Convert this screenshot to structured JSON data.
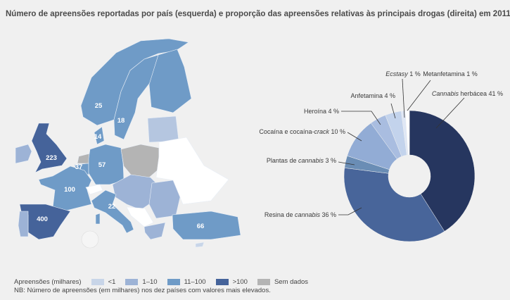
{
  "title": "Número de apreensões reportadas por país (esquerda) e proporção das apreensões relativas às principais drogas (direita) em 2011",
  "legend": {
    "label": "Apreensões (milhares)",
    "items": [
      {
        "label": "<1",
        "color": "#c8d5e8"
      },
      {
        "label": "1–10",
        "color": "#9db3d6"
      },
      {
        "label": "11–100",
        "color": "#6f9bc7"
      },
      {
        "label": ">100",
        "color": "#45639a"
      },
      {
        "label": "Sem dados",
        "color": "#b4b4b4"
      }
    ]
  },
  "note": "NB: Número de apreensões (em milhares) nos dez países com valores mais elevados.",
  "map_values": [
    {
      "country": "Espanha",
      "value": "400"
    },
    {
      "country": "Reino Unido",
      "value": "223"
    },
    {
      "country": "França",
      "value": "100"
    },
    {
      "country": "Turquia",
      "value": "66"
    },
    {
      "country": "Alemanha",
      "value": "57"
    },
    {
      "country": "Bélgica",
      "value": "37"
    },
    {
      "country": "Noruega",
      "value": "25"
    },
    {
      "country": "Itália",
      "value": "22"
    },
    {
      "country": "Suécia",
      "value": "18"
    },
    {
      "country": "Dinamarca",
      "value": "14"
    }
  ],
  "chart_data": {
    "type": "pie",
    "donut": true,
    "title": "Proporção das apreensões relativas às principais drogas",
    "unit": "%",
    "slices": [
      {
        "pre": "",
        "em": "Cannabis",
        "post": " herbácea 41 %",
        "value": 41,
        "color": "#26365f"
      },
      {
        "pre": "Resina de ",
        "em": "cannabis",
        "post": " 36 %",
        "value": 36,
        "color": "#48659a"
      },
      {
        "pre": "Plantas de ",
        "em": "cannabis",
        "post": " 3 %",
        "value": 3,
        "color": "#6a8db5"
      },
      {
        "pre": "Cocaína e cocaína-",
        "em": "crack",
        "post": " 10 %",
        "value": 10,
        "color": "#92acd5"
      },
      {
        "pre": "Heroína 4 %",
        "em": "",
        "post": "",
        "value": 4,
        "color": "#a9bde0"
      },
      {
        "pre": "Anfetamina 4 %",
        "em": "",
        "post": "",
        "value": 4,
        "color": "#c3d3ec"
      },
      {
        "pre": "",
        "em": "Ecstasy",
        "post": " 1 %",
        "value": 1,
        "color": "#dfe7f5"
      },
      {
        "pre": "Metanfetamina 1 %",
        "em": "",
        "post": "",
        "value": 1,
        "color": "#ffffff"
      }
    ]
  }
}
